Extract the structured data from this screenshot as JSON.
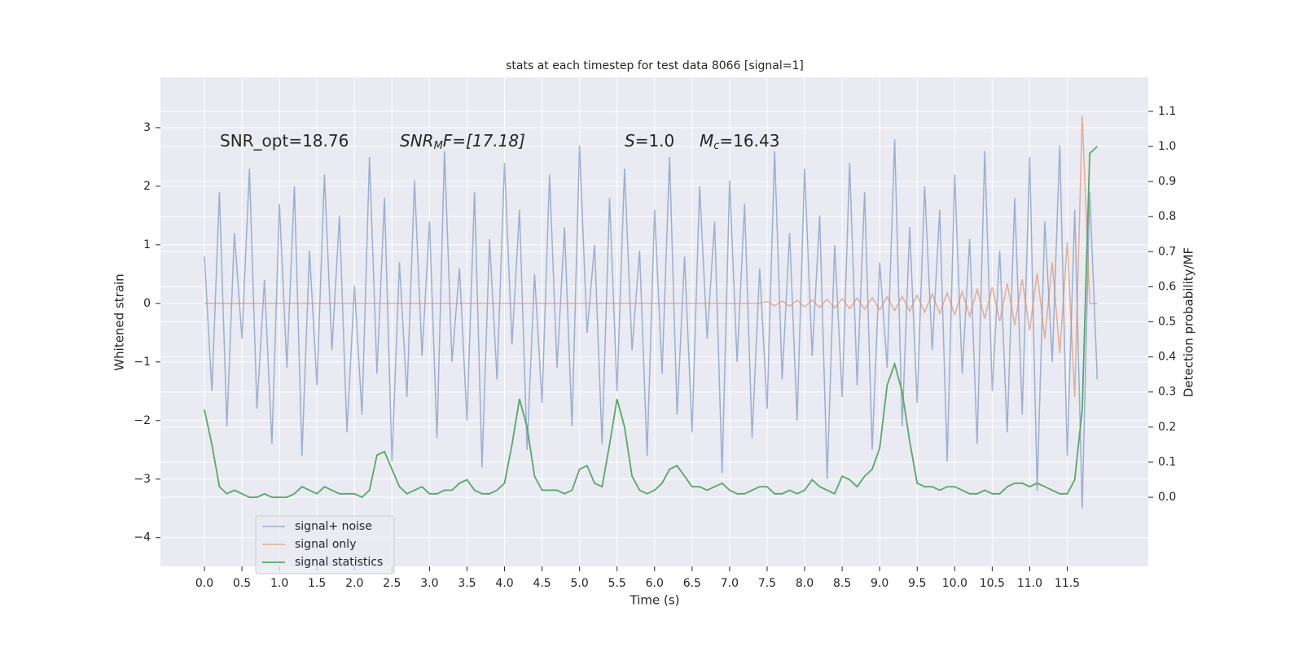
{
  "chart_data": {
    "type": "line",
    "title": "stats at each timestep for test data 8066 [signal=1]",
    "x_label": "Time (s)",
    "y_label": "Whitened strain",
    "y2_label": "Detection probability/MF",
    "annotations": [
      [
        "SNR_opt=18.76"
      ],
      [
        "SNR",
        "M",
        "F=[17.18]"
      ],
      [
        "S",
        "=1.0"
      ],
      [
        "M",
        "c",
        "=16.43"
      ]
    ],
    "grid": true,
    "legend": "lower left",
    "xlim": [
      -0.586,
      12.58
    ],
    "ylim": [
      -4.49,
      3.86
    ],
    "y2lim": [
      -0.197,
      1.197
    ],
    "xticks": [
      {
        "value": 0,
        "label": "0.0"
      },
      0.5,
      {
        "value": 1,
        "label": "1.0"
      },
      1.5,
      {
        "value": 2,
        "label": "2.0"
      },
      2.5,
      {
        "value": 3,
        "label": "3.0"
      },
      3.5,
      {
        "value": 4,
        "label": "4.0"
      },
      4.5,
      {
        "value": 5,
        "label": "5.0"
      },
      5.5,
      {
        "value": 6,
        "label": "6.0"
      },
      6.5,
      {
        "value": 7,
        "label": "7.0"
      },
      7.5,
      {
        "value": 8,
        "label": "8.0"
      },
      8.5,
      {
        "value": 9,
        "label": "9.0"
      },
      9.5,
      {
        "value": 10,
        "label": "10.0"
      },
      10.5,
      {
        "value": 11,
        "label": "11.0"
      },
      11.5
    ],
    "yticks": [
      {
        "value": -4,
        "label": "−4"
      },
      {
        "value": -3,
        "label": "−3"
      },
      {
        "value": -2,
        "label": "−2"
      },
      {
        "value": -1,
        "label": "−1"
      },
      0,
      1,
      2,
      3
    ],
    "y2ticks": [
      {
        "value": 0,
        "label": "0.0"
      },
      0.1,
      0.2,
      0.3,
      0.4,
      0.5,
      0.6,
      0.7,
      0.8,
      0.9,
      {
        "value": 1,
        "label": "1.0"
      },
      1.1
    ],
    "x": [
      0,
      0.1,
      0.2,
      0.3,
      0.4,
      0.5,
      0.6,
      0.7,
      0.8,
      0.9,
      1,
      1.1,
      1.2,
      1.3,
      1.4,
      1.5,
      1.6,
      1.7,
      1.8,
      1.9,
      2,
      2.1,
      2.2,
      2.3,
      2.4,
      2.5,
      2.6,
      2.7,
      2.8,
      2.9,
      3,
      3.1,
      3.2,
      3.3,
      3.4,
      3.5,
      3.6,
      3.7,
      3.8,
      3.9,
      4,
      4.1,
      4.2,
      4.3,
      4.4,
      4.5,
      4.6,
      4.7,
      4.8,
      4.9,
      5,
      5.1,
      5.2,
      5.3,
      5.4,
      5.5,
      5.6,
      5.7,
      5.8,
      5.9,
      6,
      6.1,
      6.2,
      6.3,
      6.4,
      6.5,
      6.6,
      6.7,
      6.8,
      6.9,
      7,
      7.1,
      7.2,
      7.3,
      7.4,
      7.5,
      7.6,
      7.7,
      7.8,
      7.9,
      8,
      8.1,
      8.2,
      8.3,
      8.4,
      8.5,
      8.6,
      8.7,
      8.8,
      8.9,
      9,
      9.1,
      9.2,
      9.3,
      9.4,
      9.5,
      9.6,
      9.7,
      9.8,
      9.9,
      10,
      10.1,
      10.2,
      10.3,
      10.4,
      10.5,
      10.6,
      10.7,
      10.8,
      10.9,
      11,
      11.1,
      11.2,
      11.3,
      11.4,
      11.5,
      11.6,
      11.7,
      11.8,
      11.9
    ],
    "series": [
      {
        "name": "signal+ noise",
        "color": "#4c72b0",
        "values": [
          0.8,
          -1.5,
          1.9,
          -2.1,
          1.2,
          -0.6,
          2.3,
          -1.8,
          0.4,
          -2.4,
          1.7,
          -1.1,
          2.0,
          -2.6,
          0.9,
          -1.4,
          2.2,
          -0.8,
          1.5,
          -2.2,
          0.3,
          -1.9,
          2.5,
          -1.2,
          1.8,
          -2.7,
          0.7,
          -1.6,
          2.1,
          -0.9,
          1.4,
          -2.3,
          2.6,
          -1.0,
          0.6,
          -2.0,
          1.9,
          -2.8,
          1.1,
          -1.3,
          2.4,
          -0.7,
          1.6,
          -2.5,
          0.5,
          -1.7,
          2.2,
          -1.1,
          1.3,
          -2.1,
          2.7,
          -0.5,
          1.0,
          -2.4,
          1.8,
          -1.5,
          2.3,
          -0.8,
          0.9,
          -2.6,
          1.6,
          -1.2,
          2.5,
          -1.9,
          0.8,
          -2.2,
          2.0,
          -0.6,
          1.4,
          -2.9,
          2.1,
          -1.0,
          1.7,
          -2.3,
          0.6,
          -1.8,
          2.6,
          -1.3,
          1.2,
          -2.0,
          2.3,
          -0.9,
          1.5,
          -3.0,
          1.0,
          -1.6,
          2.4,
          -1.4,
          1.9,
          -2.5,
          0.7,
          -1.1,
          2.8,
          -2.1,
          1.3,
          -1.7,
          2.0,
          -0.8,
          1.6,
          -2.7,
          2.2,
          -1.2,
          1.1,
          -2.4,
          2.6,
          -1.5,
          0.9,
          -2.2,
          1.8,
          -1.9,
          2.5,
          -3.2,
          1.4,
          -1.0,
          2.7,
          -2.6,
          1.6,
          -3.5,
          1.9,
          -1.3
        ]
      },
      {
        "name": "signal only",
        "color": "#dd8452",
        "values": [
          0,
          0,
          0,
          0,
          0,
          0,
          0,
          0,
          0,
          0,
          0,
          0,
          0,
          0,
          0,
          0,
          0,
          0,
          0,
          0,
          0,
          0,
          0,
          0,
          0,
          0,
          0,
          0,
          0,
          0,
          0,
          0,
          0,
          0,
          0,
          0,
          0,
          0,
          0,
          0,
          0,
          0,
          0,
          0,
          0,
          0,
          0,
          0,
          0,
          0,
          0,
          0,
          0,
          0,
          0,
          0,
          0,
          0,
          0,
          0,
          0,
          0,
          0,
          0,
          0,
          0,
          0,
          0,
          0,
          0,
          0,
          0,
          0,
          0,
          0,
          0.03,
          -0.04,
          0.04,
          -0.05,
          0.05,
          -0.06,
          0.06,
          -0.07,
          0.07,
          -0.08,
          0.08,
          -0.09,
          0.09,
          -0.1,
          0.1,
          -0.11,
          0.11,
          -0.12,
          0.12,
          -0.13,
          0.14,
          -0.15,
          0.16,
          -0.17,
          0.18,
          -0.19,
          0.2,
          -0.22,
          0.24,
          -0.26,
          0.28,
          -0.31,
          0.34,
          -0.37,
          0.41,
          -0.46,
          0.52,
          -0.6,
          0.7,
          -0.85,
          1.05,
          -1.6,
          3.2,
          0,
          0
        ]
      },
      {
        "name": "signal statistics",
        "color": "#55a868",
        "axis": "y2",
        "values": [
          0.25,
          0.15,
          0.03,
          0.01,
          0.02,
          0.01,
          0,
          0,
          0.01,
          0,
          0,
          0,
          0.01,
          0.03,
          0.02,
          0.01,
          0.03,
          0.02,
          0.01,
          0.01,
          0.01,
          0,
          0.02,
          0.12,
          0.13,
          0.08,
          0.03,
          0.01,
          0.02,
          0.03,
          0.01,
          0.01,
          0.02,
          0.02,
          0.04,
          0.05,
          0.02,
          0.01,
          0.01,
          0.02,
          0.04,
          0.15,
          0.28,
          0.2,
          0.06,
          0.02,
          0.02,
          0.02,
          0.01,
          0.02,
          0.08,
          0.09,
          0.04,
          0.03,
          0.15,
          0.28,
          0.2,
          0.06,
          0.02,
          0.01,
          0.02,
          0.04,
          0.08,
          0.09,
          0.06,
          0.03,
          0.03,
          0.02,
          0.03,
          0.04,
          0.02,
          0.01,
          0.01,
          0.02,
          0.03,
          0.03,
          0.01,
          0.01,
          0.02,
          0.01,
          0.02,
          0.05,
          0.03,
          0.02,
          0.01,
          0.06,
          0.05,
          0.03,
          0.06,
          0.08,
          0.14,
          0.32,
          0.38,
          0.3,
          0.16,
          0.04,
          0.03,
          0.03,
          0.02,
          0.03,
          0.03,
          0.02,
          0.01,
          0.01,
          0.02,
          0.01,
          0.01,
          0.03,
          0.04,
          0.04,
          0.03,
          0.04,
          0.03,
          0.02,
          0.01,
          0.01,
          0.05,
          0.25,
          0.98,
          1.0
        ]
      }
    ]
  }
}
